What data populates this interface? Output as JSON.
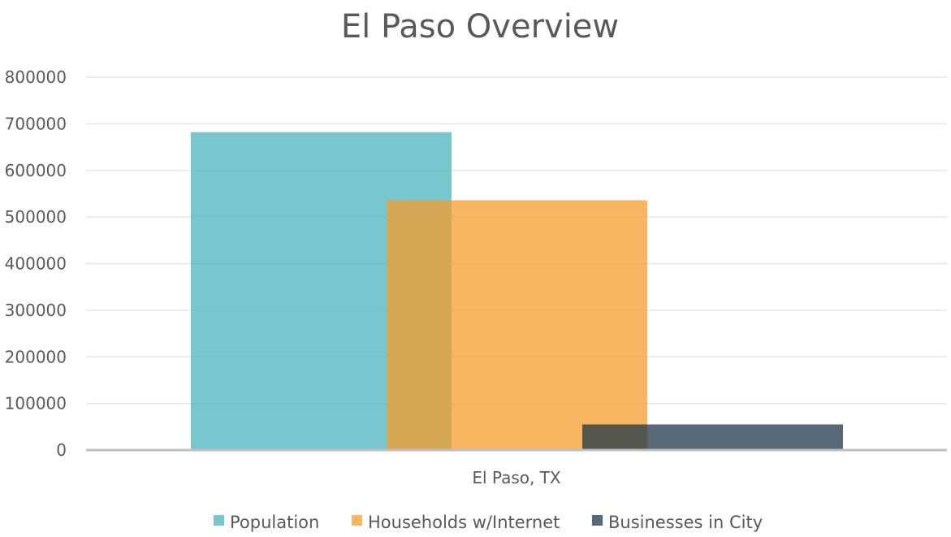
{
  "chart_data": {
    "type": "bar",
    "title": "El Paso Overview",
    "categories": [
      "El Paso, TX"
    ],
    "series": [
      {
        "name": "Population",
        "values": [
          682000
        ],
        "color": "#4bb4bf"
      },
      {
        "name": "Households w/Internet",
        "values": [
          536000
        ],
        "color": "#f59d2e"
      },
      {
        "name": "Businesses in City",
        "values": [
          55000
        ],
        "color": "#1f3548"
      }
    ],
    "ylim": [
      0,
      800000
    ],
    "yticks": [
      "800000",
      "700000",
      "600000",
      "500000",
      "400000",
      "300000",
      "200000",
      "100000",
      "0"
    ],
    "grid": true,
    "legend": "bottom",
    "overlapping_bars": true
  }
}
